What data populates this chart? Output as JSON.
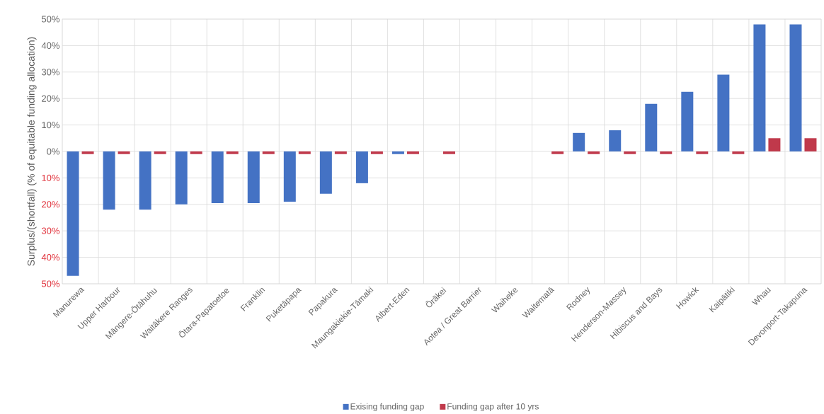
{
  "chart_data": {
    "type": "bar",
    "ylabel": "Surplus/(shortfall) (% of equitable funding allocation)",
    "categories": [
      "Manurewa",
      "Upper Harbour",
      "Māngere-Ōtāhuhu",
      "Waitākere Ranges",
      "Ōtara-Papatoetoe",
      "Franklin",
      "Puketāpapa",
      "Papakura",
      "Maungakiekie-Tāmaki",
      "Albert-Eden",
      "Ōrākei",
      "Aotea / Great Barrier",
      "Waiheke",
      "Waitematā",
      "Rodney",
      "Henderson-Massey",
      "Hibiscus and Bays",
      "Howick",
      "Kaipātiki",
      "Whau",
      "Devonport-Takapuna"
    ],
    "series": [
      {
        "name": "Exising funding gap",
        "color": "#4472c4",
        "values": [
          -47,
          -22,
          -22,
          -20,
          -19.5,
          -19.5,
          -19,
          -16,
          -12,
          -1,
          0,
          0,
          0,
          0,
          7,
          8,
          18,
          22.5,
          29,
          48,
          48
        ]
      },
      {
        "name": "Funding gap after 10 yrs",
        "color": "#c0394b",
        "values": [
          -1,
          -1,
          -1,
          -1,
          -1,
          -1,
          -1,
          -1,
          -1,
          -1,
          -1,
          null,
          null,
          -1,
          -1,
          -1,
          -1,
          -1,
          -1,
          5,
          5
        ]
      }
    ],
    "ylim": [
      -50,
      50
    ],
    "yticks": [
      {
        "value": -50,
        "label": "50%"
      },
      {
        "value": -40,
        "label": "40%"
      },
      {
        "value": -30,
        "label": "30%"
      },
      {
        "value": -20,
        "label": "20%"
      },
      {
        "value": -10,
        "label": "10%"
      },
      {
        "value": 0,
        "label": "0%"
      },
      {
        "value": 10,
        "label": "10%"
      },
      {
        "value": 20,
        "label": "20%"
      },
      {
        "value": 30,
        "label": "30%"
      },
      {
        "value": 40,
        "label": "40%"
      },
      {
        "value": 50,
        "label": "50%"
      }
    ],
    "grid": true,
    "legend": "bottom"
  }
}
